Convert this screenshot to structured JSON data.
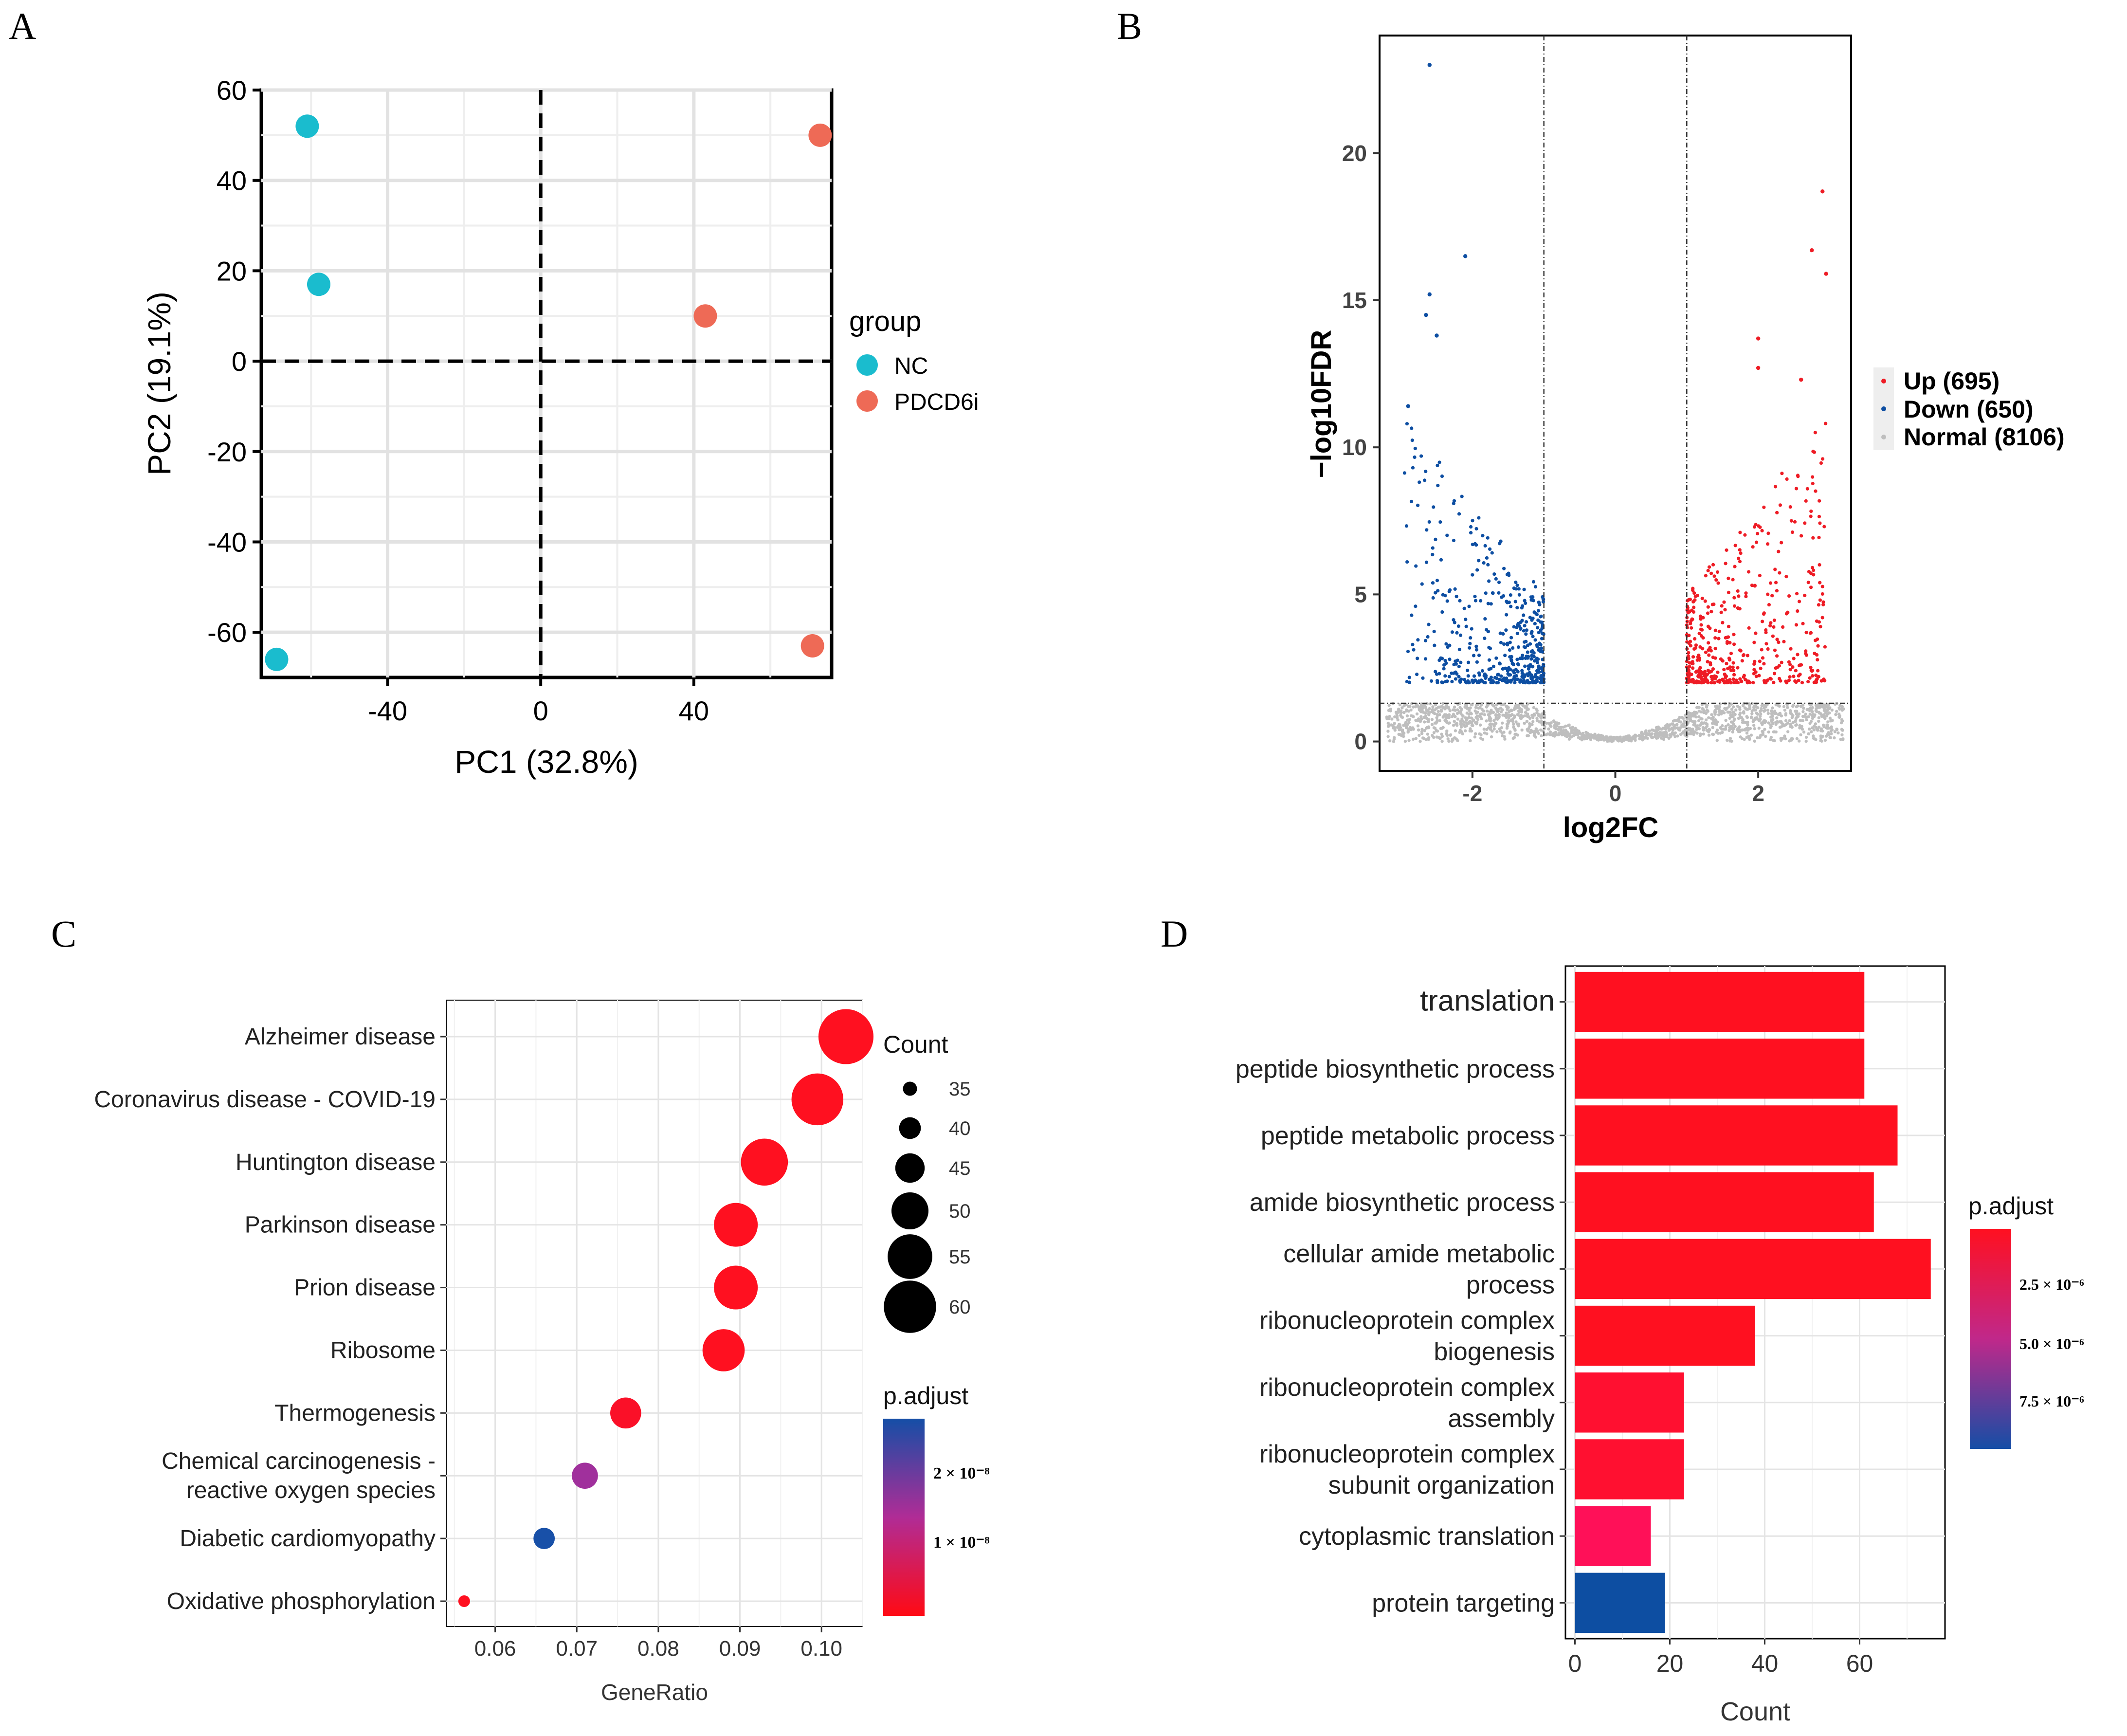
{
  "figure": {
    "panel_labels": [
      "A",
      "B",
      "C",
      "D"
    ]
  },
  "chart_data": [
    {
      "panel": "A",
      "type": "scatter",
      "xlabel": "PC1 (32.8%)",
      "ylabel": "PC2 (19.1%)",
      "xlim": [
        -73,
        76
      ],
      "ylim": [
        -70,
        60
      ],
      "xticks": [
        -40,
        0,
        40
      ],
      "yticks": [
        60,
        40,
        20,
        0,
        -20,
        -40,
        -60
      ],
      "grid": true,
      "reference_lines": {
        "x": 0,
        "y": 0,
        "style": "dashed"
      },
      "legend": {
        "title": "group",
        "placement": "right"
      },
      "series": [
        {
          "name": "NC",
          "color": "#1ABCCE",
          "points": [
            {
              "x": -61,
              "y": 52
            },
            {
              "x": -58,
              "y": 17
            },
            {
              "x": -69,
              "y": -66
            }
          ]
        },
        {
          "name": "PDCD6i",
          "color": "#EE6A56",
          "points": [
            {
              "x": 73,
              "y": 50
            },
            {
              "x": 43,
              "y": 10
            },
            {
              "x": 71,
              "y": -63
            }
          ]
        }
      ]
    },
    {
      "panel": "B",
      "type": "scatter",
      "subtype": "volcano",
      "xlabel": "log2FC",
      "ylabel": "−log10FDR",
      "xlim": [
        -3.3,
        3.3
      ],
      "ylim": [
        -1,
        24
      ],
      "xticks": [
        -2,
        0,
        2
      ],
      "yticks": [
        0,
        5,
        10,
        15,
        20
      ],
      "grid": false,
      "thresholds": {
        "log2fc": [
          -1,
          1
        ],
        "neglog10fdr": 1.3,
        "style": "dotdash"
      },
      "legend": {
        "placement": "right"
      },
      "series": [
        {
          "name": "Up (695)",
          "color": "#EE1C25",
          "count": 695
        },
        {
          "name": "Down (650)",
          "color": "#0D4EA2",
          "count": 650
        },
        {
          "name": "Normal (8106)",
          "color": "#BEBEBE",
          "count": 8106
        }
      ],
      "notable_points": [
        {
          "x": -2.6,
          "y": 23.0,
          "group": "Down"
        },
        {
          "x": -2.1,
          "y": 16.5,
          "group": "Down"
        },
        {
          "x": -2.6,
          "y": 15.2,
          "group": "Down"
        },
        {
          "x": -2.65,
          "y": 14.5,
          "group": "Down"
        },
        {
          "x": -2.5,
          "y": 13.8,
          "group": "Down"
        },
        {
          "x": -2.9,
          "y": 11.4,
          "group": "Down"
        },
        {
          "x": 2.9,
          "y": 18.7,
          "group": "Up"
        },
        {
          "x": 2.75,
          "y": 16.7,
          "group": "Up"
        },
        {
          "x": 2.95,
          "y": 15.9,
          "group": "Up"
        },
        {
          "x": 2.0,
          "y": 13.7,
          "group": "Up"
        },
        {
          "x": 2.0,
          "y": 12.7,
          "group": "Up"
        },
        {
          "x": 2.6,
          "y": 12.3,
          "group": "Up"
        }
      ]
    },
    {
      "panel": "C",
      "type": "scatter",
      "subtype": "dot-plot",
      "xlabel": "GeneRatio",
      "ylabel": "",
      "xlim": [
        0.054,
        0.105
      ],
      "xticks": [
        0.06,
        0.07,
        0.08,
        0.09,
        0.1
      ],
      "xticklabels": [
        "0.06",
        "0.07",
        "0.08",
        "0.09",
        "0.10"
      ],
      "grid": true,
      "size_legend": {
        "title": "Count",
        "labels": [
          "35",
          "40",
          "45",
          "50",
          "55",
          "60"
        ]
      },
      "color_legend": {
        "title": "p.adjust",
        "labels": [
          "2 × 10⁻⁸",
          "1 × 10⁻⁸"
        ],
        "low_color": "#FF0A14",
        "high_color": "#154EA6"
      },
      "categories": [
        "Alzheimer disease",
        "Coronavirus disease - COVID-19",
        "Huntington disease",
        "Parkinson disease",
        "Prion disease",
        "Ribosome",
        "Thermogenesis",
        "Chemical carcinogenesis -\nreactive oxygen species",
        "Diabetic cardiomyopathy",
        "Oxidative phosphorylation"
      ],
      "x": [
        0.103,
        0.0995,
        0.093,
        0.0895,
        0.0895,
        0.088,
        0.076,
        0.071,
        0.066,
        0.0562
      ],
      "count": [
        60,
        58,
        55,
        53,
        53,
        52,
        45,
        42,
        39,
        33
      ],
      "p_adjust_colors": [
        "#FF1020",
        "#FF1020",
        "#FF1020",
        "#FF1020",
        "#FF1020",
        "#FF1020",
        "#FA1028",
        "#A0309C",
        "#1850A8",
        "#FF1020"
      ]
    },
    {
      "panel": "D",
      "type": "bar",
      "orientation": "horizontal",
      "xlabel": "Count",
      "ylabel": "",
      "xlim": [
        -2,
        78
      ],
      "xticks": [
        0,
        20,
        40,
        60
      ],
      "grid": true,
      "color_legend": {
        "title": "p.adjust",
        "labels": [
          "2.5 × 10⁻⁶",
          "5.0 × 10⁻⁶",
          "7.5 × 10⁻⁶"
        ],
        "low_color": "#FF1020",
        "high_color": "#154EA6"
      },
      "categories": [
        "translation",
        "peptide biosynthetic process",
        "peptide metabolic process",
        "amide biosynthetic process",
        "cellular amide metabolic\nprocess",
        "ribonucleoprotein complex\nbiogenesis",
        "ribonucleoprotein complex\nassembly",
        "ribonucleoprotein complex\nsubunit organization",
        "cytoplasmic translation",
        "protein targeting"
      ],
      "values": [
        61,
        61,
        68,
        63,
        75,
        38,
        23,
        23,
        16,
        19
      ],
      "colors": [
        "#FF1020",
        "#FF1020",
        "#FF1020",
        "#FF1020",
        "#FF1020",
        "#FF1020",
        "#FF1030",
        "#FF1030",
        "#FF1058",
        "#0D4EA2"
      ]
    }
  ]
}
